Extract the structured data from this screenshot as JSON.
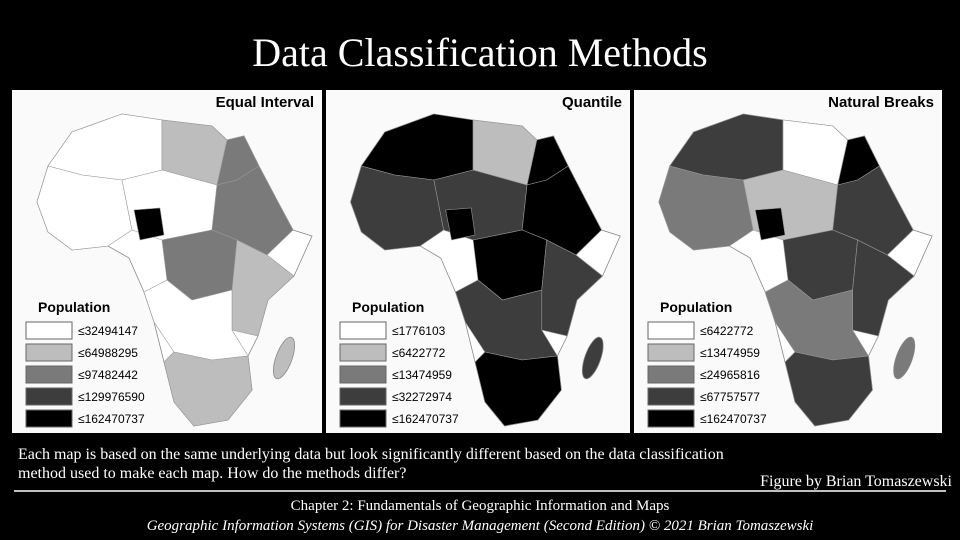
{
  "title": "Data Classification Methods",
  "maps": [
    {
      "title": "Equal Interval",
      "legend_title": "Population",
      "legend": [
        "≤32494147",
        "≤64988295",
        "≤97482442",
        "≤129976590",
        "≤162470737"
      ]
    },
    {
      "title": "Quantile",
      "legend_title": "Population",
      "legend": [
        "≤1776103",
        "≤6422772",
        "≤13474959",
        "≤32272974",
        "≤162470737"
      ]
    },
    {
      "title": "Natural Breaks",
      "legend_title": "Population",
      "legend": [
        "≤6422772",
        "≤13474959",
        "≤24965816",
        "≤67757577",
        "≤162470737"
      ]
    }
  ],
  "caption": [
    "Each map is based on the same underlying data but look significantly different based on the data classification",
    "method used to make each map. How do the methods differ?"
  ],
  "credit": "Figure by Brian Tomaszewski",
  "footer": {
    "chapter": "Chapter 2: Fundamentals of Geographic Information and Maps",
    "book": "Geographic Information Systems (GIS) for Disaster Management (Second Edition) © 2021 Brian Tomaszewski"
  }
}
